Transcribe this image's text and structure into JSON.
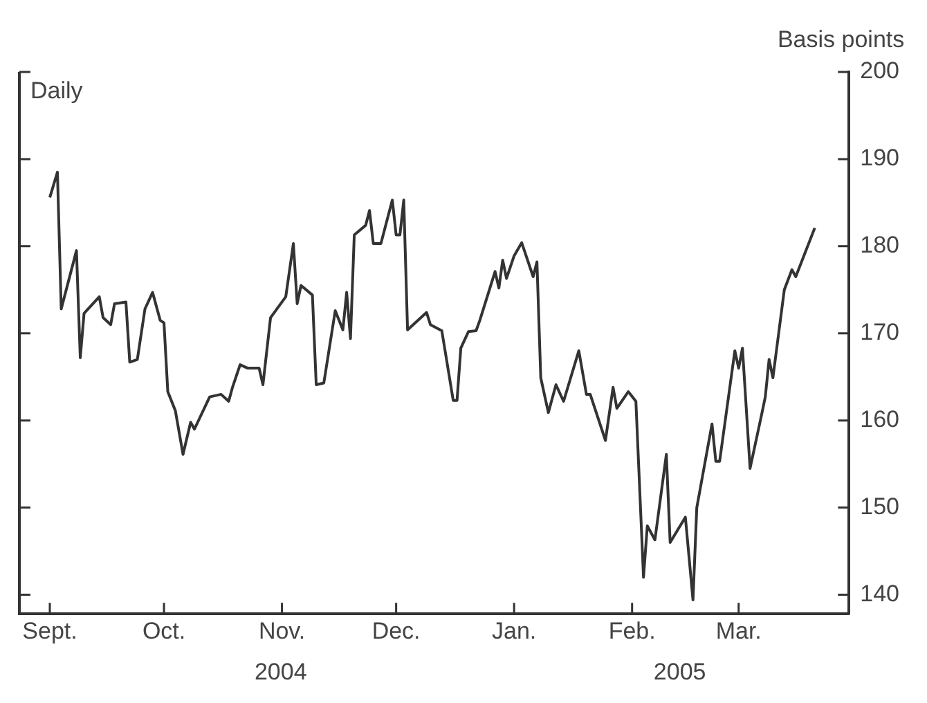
{
  "chart_data": {
    "type": "line",
    "ylabel": "Basis points",
    "annotations": [
      "Daily",
      "2004",
      "2005"
    ],
    "x": [
      "2004-09-01",
      "2004-09-03",
      "2004-09-04",
      "2004-09-08",
      "2004-09-09",
      "2004-09-10",
      "2004-09-14",
      "2004-09-15",
      "2004-09-17",
      "2004-09-18",
      "2004-09-21",
      "2004-09-22",
      "2004-09-24",
      "2004-09-26",
      "2004-09-28",
      "2004-09-30",
      "2004-10-01",
      "2004-10-02",
      "2004-10-04",
      "2004-10-06",
      "2004-10-08",
      "2004-10-09",
      "2004-10-13",
      "2004-10-16",
      "2004-10-18",
      "2004-10-19",
      "2004-10-21",
      "2004-10-23",
      "2004-10-26",
      "2004-10-27",
      "2004-10-29",
      "2004-11-02",
      "2004-11-04",
      "2004-11-05",
      "2004-11-06",
      "2004-11-09",
      "2004-11-10",
      "2004-11-12",
      "2004-11-15",
      "2004-11-17",
      "2004-11-18",
      "2004-11-19",
      "2004-11-20",
      "2004-11-23",
      "2004-11-24",
      "2004-11-25",
      "2004-11-27",
      "2004-11-30",
      "2004-12-01",
      "2004-12-02",
      "2004-12-03",
      "2004-12-04",
      "2004-12-09",
      "2004-12-10",
      "2004-12-13",
      "2004-12-16",
      "2004-12-17",
      "2004-12-18",
      "2004-12-20",
      "2004-12-22",
      "2004-12-23",
      "2004-12-27",
      "2004-12-28",
      "2004-12-29",
      "2004-12-30",
      "2005-01-01",
      "2005-01-03",
      "2005-01-06",
      "2005-01-07",
      "2005-01-08",
      "2005-01-10",
      "2005-01-12",
      "2005-01-14",
      "2005-01-18",
      "2005-01-20",
      "2005-01-21",
      "2005-01-25",
      "2005-01-27",
      "2005-01-28",
      "2005-01-31",
      "2005-02-02",
      "2005-02-04",
      "2005-02-05",
      "2005-02-07",
      "2005-02-10",
      "2005-02-11",
      "2005-02-15",
      "2005-02-17",
      "2005-02-18",
      "2005-02-22",
      "2005-02-23",
      "2005-02-24",
      "2005-02-28",
      "2005-03-01",
      "2005-03-02",
      "2005-03-04",
      "2005-03-07",
      "2005-03-08",
      "2005-03-09",
      "2005-03-10",
      "2005-03-13",
      "2005-03-15",
      "2005-03-16",
      "2005-03-21"
    ],
    "series": [
      {
        "color": "#333333",
        "values": [
          185.6,
          188.5,
          172.8,
          179.5,
          167.2,
          172.3,
          174.2,
          171.8,
          171,
          173.4,
          173.6,
          166.7,
          167,
          172.8,
          174.7,
          171.5,
          171.2,
          163.3,
          161.1,
          156.1,
          159.8,
          159,
          162.7,
          163,
          162.2,
          163.8,
          166.4,
          166,
          166,
          164.1,
          171.8,
          174.2,
          180.3,
          173.4,
          175.5,
          174.4,
          164.1,
          164.3,
          172.6,
          170.4,
          174.7,
          169.4,
          181.3,
          182.4,
          184.1,
          180.3,
          180.3,
          185.3,
          181.3,
          181.3,
          185.3,
          170.4,
          172.4,
          171,
          170.3,
          162.3,
          162.3,
          168.3,
          170.2,
          170.3,
          171.5,
          177.1,
          175.2,
          178.4,
          176.3,
          178.9,
          180.4,
          176.5,
          178.2,
          164.9,
          160.9,
          164.1,
          162.2,
          168,
          163,
          163,
          157.7,
          163.8,
          161.4,
          163.3,
          162.2,
          142,
          147.9,
          146.3,
          156.1,
          146,
          148.9,
          139.4,
          150,
          159.6,
          155.3,
          155.3,
          168,
          166,
          168.3,
          154.5,
          160.6,
          162.7,
          167,
          164.9,
          175,
          177.3,
          176.5,
          182.1
        ]
      }
    ],
    "xlim": [
      "2004-08-24",
      "2005-03-30"
    ],
    "xticks": [
      {
        "value": "2004-09-01",
        "label": "Sept."
      },
      {
        "value": "2004-10-01",
        "label": "Oct."
      },
      {
        "value": "2004-11-01",
        "label": "Nov."
      },
      {
        "value": "2004-12-01",
        "label": "Dec."
      },
      {
        "value": "2005-01-01",
        "label": "Jan."
      },
      {
        "value": "2005-02-01",
        "label": "Feb."
      },
      {
        "value": "2005-03-01",
        "label": "Mar."
      }
    ],
    "ylim": [
      137.8,
      200
    ],
    "yticks": [
      140,
      150,
      160,
      170,
      180,
      190,
      200
    ],
    "grid": false,
    "legend": false,
    "marker": "none",
    "line_style": "solid"
  }
}
